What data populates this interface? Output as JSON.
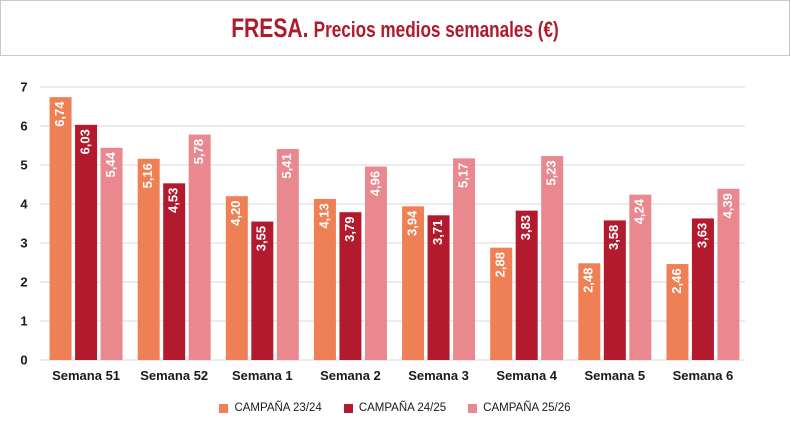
{
  "header": {
    "title_lead": "FRESA.",
    "title_rest": "Precios medios semanales (€)"
  },
  "colors": {
    "s1": "#ef8055",
    "s2": "#b41a2d",
    "s3": "#e9888f",
    "grid": "#d9d9d9",
    "title": "#b01b2c"
  },
  "chart_data": {
    "type": "bar",
    "title": "FRESA. Precios medios semanales (€)",
    "xlabel": "",
    "ylabel": "",
    "ylim": [
      0,
      7
    ],
    "yticks": [
      0,
      1,
      2,
      3,
      4,
      5,
      6,
      7
    ],
    "grid": true,
    "legend_position": "bottom",
    "categories": [
      "Semana 51",
      "Semana 52",
      "Semana 1",
      "Semana 2",
      "Semana 3",
      "Semana 4",
      "Semana 5",
      "Semana 6"
    ],
    "series": [
      {
        "name": "CAMPAÑA 23/24",
        "values": [
          6.74,
          5.16,
          4.2,
          4.13,
          3.94,
          2.88,
          2.48,
          2.46
        ],
        "labels": [
          "6,74",
          "5,16",
          "4,20",
          "4,13",
          "3,94",
          "2,88",
          "2,48",
          "2,46"
        ]
      },
      {
        "name": "CAMPAÑA 24/25",
        "values": [
          6.03,
          4.53,
          3.55,
          3.79,
          3.71,
          3.83,
          3.58,
          3.63
        ],
        "labels": [
          "6,03",
          "4,53",
          "3,55",
          "3,79",
          "3,71",
          "3,83",
          "3,58",
          "3,63"
        ]
      },
      {
        "name": "CAMPAÑA 25/26",
        "values": [
          5.44,
          5.78,
          5.41,
          4.96,
          5.17,
          5.23,
          4.24,
          4.39
        ],
        "labels": [
          "5,44",
          "5,78",
          "5,41",
          "4,96",
          "5,17",
          "5,23",
          "4,24",
          "4,39"
        ]
      }
    ]
  }
}
